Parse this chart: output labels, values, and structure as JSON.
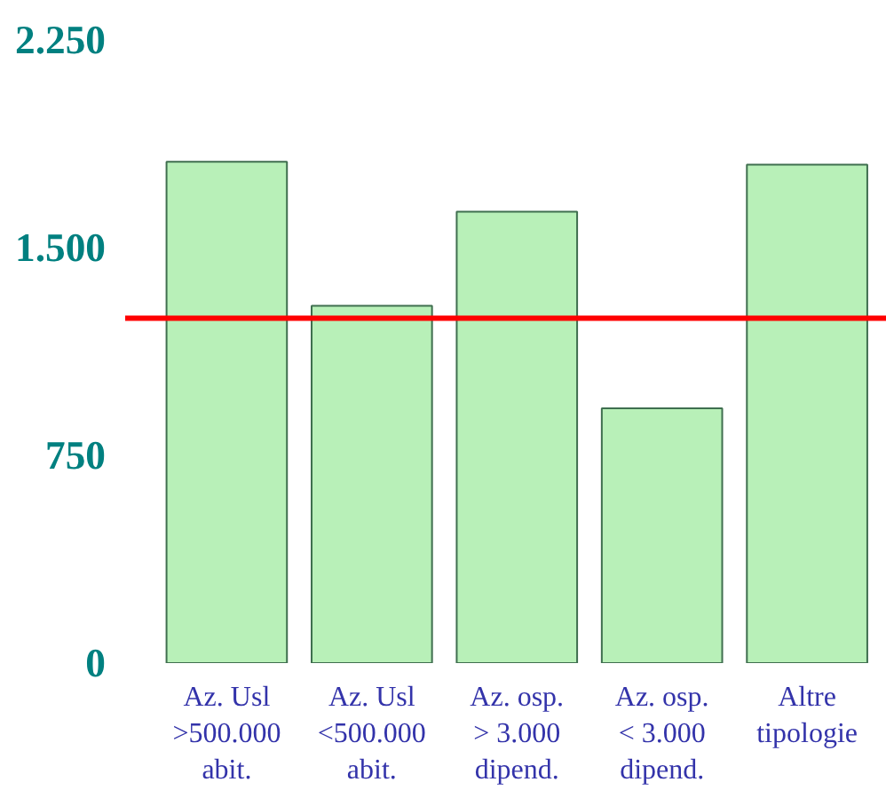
{
  "chart_data": {
    "type": "bar",
    "categories": [
      "Az. Usl\n>500.000\nabit.",
      "Az. Usl\n<500.000\nabit.",
      "Az. osp.\n> 3.000\ndipend.",
      "Az. osp.\n< 3.000\ndipend.",
      "Altre\ntipologie"
    ],
    "values": [
      1810,
      1290,
      1630,
      920,
      1800
    ],
    "color": "#b8f0b8",
    "ylim": [
      0,
      2250
    ],
    "yticks": [
      {
        "value": 0,
        "label": "0"
      },
      {
        "value": 750,
        "label": "750"
      },
      {
        "value": 1500,
        "label": "1.500"
      },
      {
        "value": 2250,
        "label": "2.250"
      }
    ],
    "ref_lines": [
      {
        "axis": "y",
        "value": 1245,
        "color": "#ff0000"
      }
    ],
    "grid": false
  }
}
